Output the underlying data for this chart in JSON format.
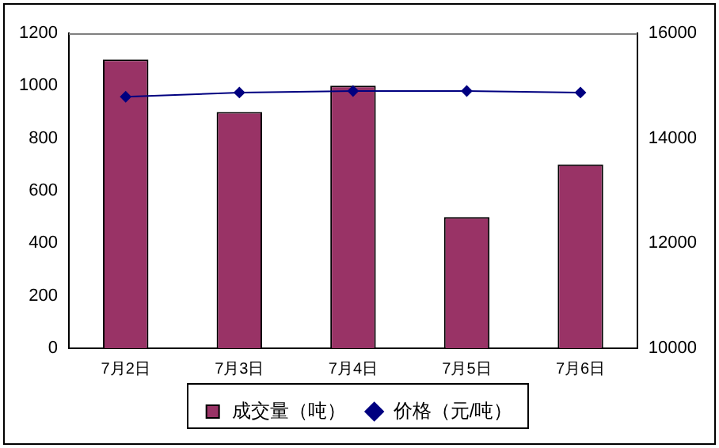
{
  "chart_data": {
    "type": "bar",
    "categories": [
      "7月2日",
      "7月3日",
      "7月4日",
      "7月5日",
      "7月6日"
    ],
    "series": [
      {
        "name": "成交量（吨）",
        "color": "#993366",
        "values": [
          1100,
          900,
          1000,
          500,
          700
        ]
      },
      {
        "name": "价格（元/吨）",
        "type": "line",
        "axis": "y2",
        "color": "#000080",
        "marker": "diamond",
        "line_style": "solid",
        "values": [
          14790,
          14870,
          14900,
          14900,
          14870
        ]
      }
    ],
    "ylim": [
      0,
      1200
    ],
    "yticks": [
      0,
      200,
      400,
      600,
      800,
      1000,
      1200
    ],
    "y2lim": [
      10000,
      16000
    ],
    "y2ticks": [
      10000,
      12000,
      14000,
      16000
    ],
    "grid": false,
    "legend": "bottom"
  }
}
